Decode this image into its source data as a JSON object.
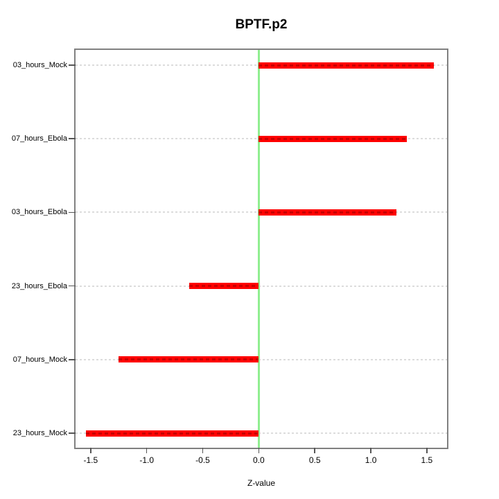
{
  "chart_data": {
    "type": "bar",
    "orientation": "horizontal",
    "title": "BPTF.p2",
    "xlabel": "Z-value",
    "ylabel": "",
    "categories": [
      "03_hours_Mock",
      "07_hours_Ebola",
      "03_hours_Ebola",
      "23_hours_Ebola",
      "07_hours_Mock",
      "23_hours_Mock"
    ],
    "values": [
      1.56,
      1.32,
      1.23,
      -0.62,
      -1.25,
      -1.54
    ],
    "xticks": [
      -1.5,
      -1.0,
      -0.5,
      0.0,
      0.5,
      1.0,
      1.5
    ],
    "xtick_labels": [
      "-1.5",
      "-1.0",
      "-0.5",
      "0.0",
      "0.5",
      "1.0",
      "1.5"
    ],
    "xlim": [
      -1.635,
      1.68
    ],
    "grid": false,
    "legend_position": "none",
    "zero_line_x": 0,
    "colors": {
      "bar": "#ff0000",
      "bar_dash": "#be0000",
      "zero_line": "#90ee90",
      "guide_line": "#dcdcdc",
      "box_border": "#808080",
      "tick": "#555555",
      "text": "#000000",
      "background": "#ffffff"
    }
  }
}
